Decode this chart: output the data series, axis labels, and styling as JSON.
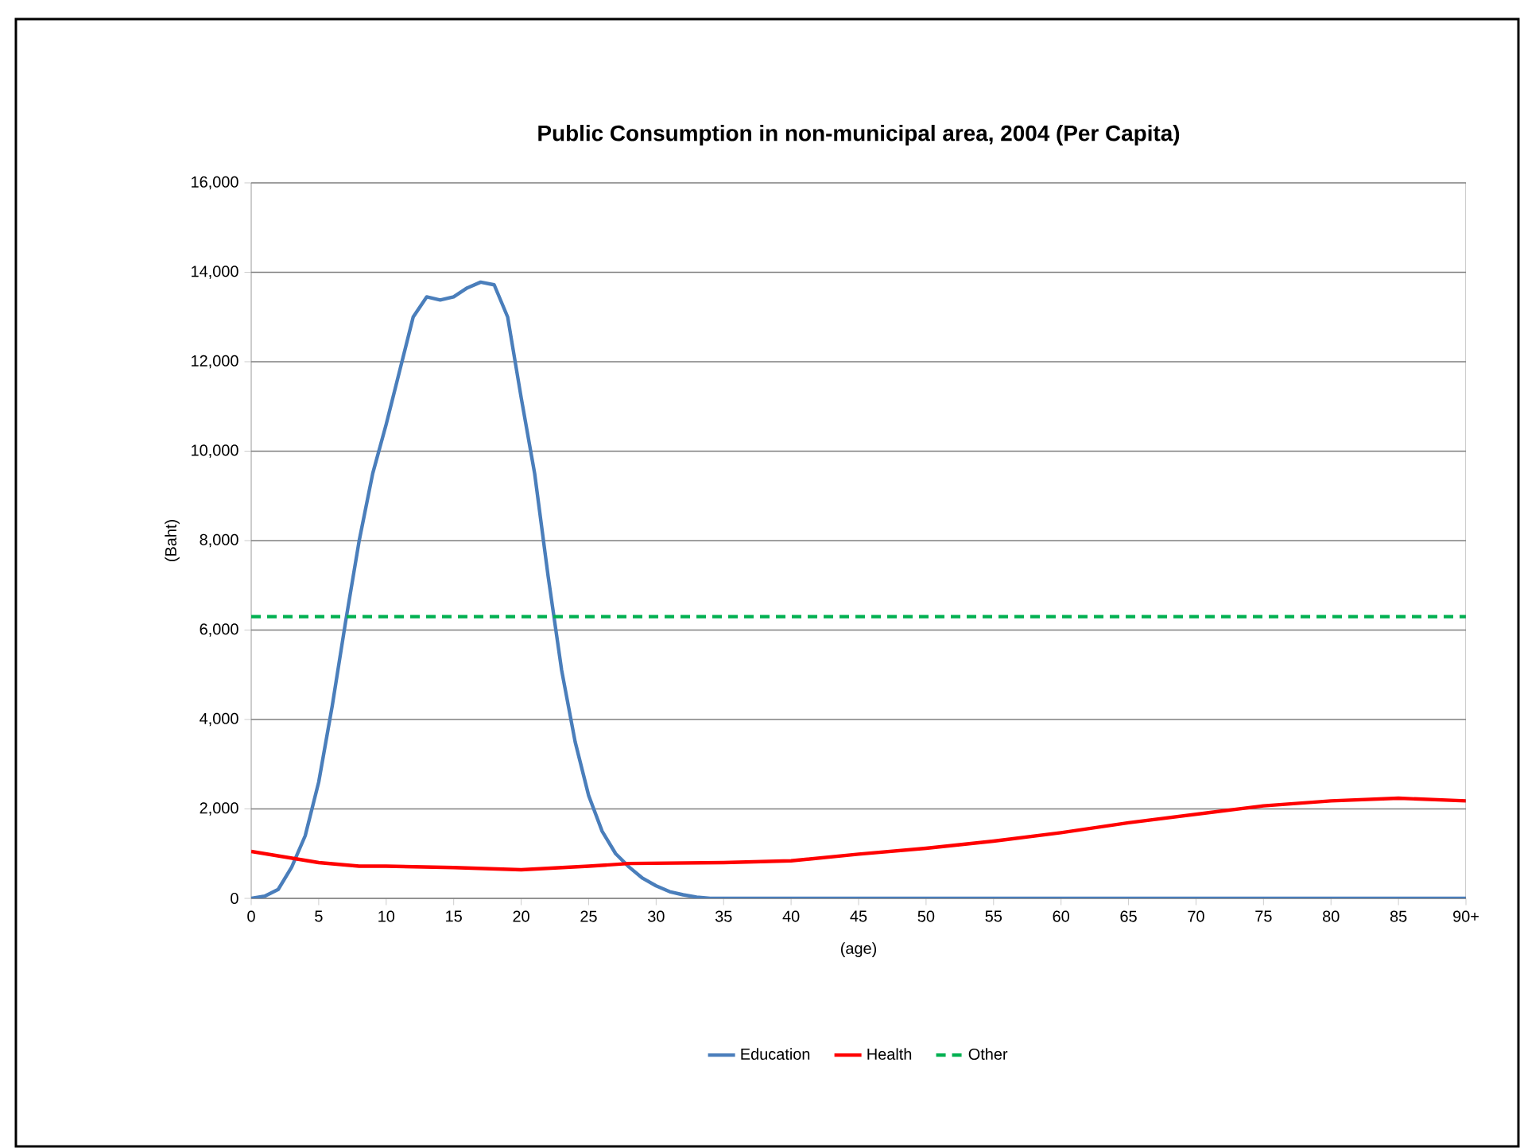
{
  "chart_data": {
    "type": "line",
    "title": "Public Consumption in non-municipal area, 2004 (Per Capita)",
    "xlabel": "(age)",
    "ylabel": "(Baht)",
    "xlim": [
      0,
      90
    ],
    "ylim": [
      0,
      16000
    ],
    "xticks": [
      0,
      5,
      10,
      15,
      20,
      25,
      30,
      35,
      40,
      45,
      50,
      55,
      60,
      65,
      70,
      75,
      80,
      85,
      {
        "value": 90,
        "label": "90+"
      }
    ],
    "yticks": [
      0,
      {
        "value": 2000,
        "label": "2,000"
      },
      {
        "value": 4000,
        "label": "4,000"
      },
      {
        "value": 6000,
        "label": "6,000"
      },
      {
        "value": 8000,
        "label": "8,000"
      },
      {
        "value": 10000,
        "label": "10,000"
      },
      {
        "value": 12000,
        "label": "12,000"
      },
      {
        "value": 14000,
        "label": "14,000"
      },
      {
        "value": 16000,
        "label": "16,000"
      }
    ],
    "grid": "y",
    "legend": "bottom",
    "marker": "none",
    "series": [
      {
        "name": "Education",
        "color": "#4a7ebb",
        "line_style": "solid",
        "x": [
          0,
          1,
          2,
          3,
          4,
          5,
          6,
          7,
          8,
          9,
          10,
          11,
          12,
          13,
          14,
          15,
          16,
          17,
          18,
          19,
          20,
          21,
          22,
          23,
          24,
          25,
          26,
          27,
          28,
          29,
          30,
          31,
          32,
          33,
          34,
          40,
          50,
          60,
          70,
          80,
          90
        ],
        "values": [
          0,
          50,
          200,
          700,
          1400,
          2600,
          4300,
          6200,
          8000,
          9500,
          10600,
          11800,
          13000,
          13450,
          13380,
          13450,
          13650,
          13780,
          13720,
          13000,
          11200,
          9500,
          7200,
          5100,
          3500,
          2300,
          1500,
          1000,
          700,
          450,
          280,
          150,
          80,
          30,
          0,
          0,
          0,
          0,
          0,
          0,
          0
        ]
      },
      {
        "name": "Health",
        "color": "#ff0000",
        "line_style": "solid",
        "x": [
          0,
          2,
          5,
          8,
          10,
          15,
          20,
          25,
          28,
          35,
          40,
          45,
          50,
          55,
          60,
          65,
          70,
          75,
          80,
          85,
          90
        ],
        "values": [
          1050,
          950,
          800,
          720,
          720,
          690,
          640,
          720,
          780,
          800,
          840,
          990,
          1120,
          1280,
          1470,
          1690,
          1880,
          2070,
          2180,
          2240,
          2180
        ]
      },
      {
        "name": "Other",
        "color": "#00b050",
        "line_style": "dashed",
        "x": [
          0,
          90
        ],
        "values": [
          6300,
          6300
        ]
      }
    ]
  }
}
